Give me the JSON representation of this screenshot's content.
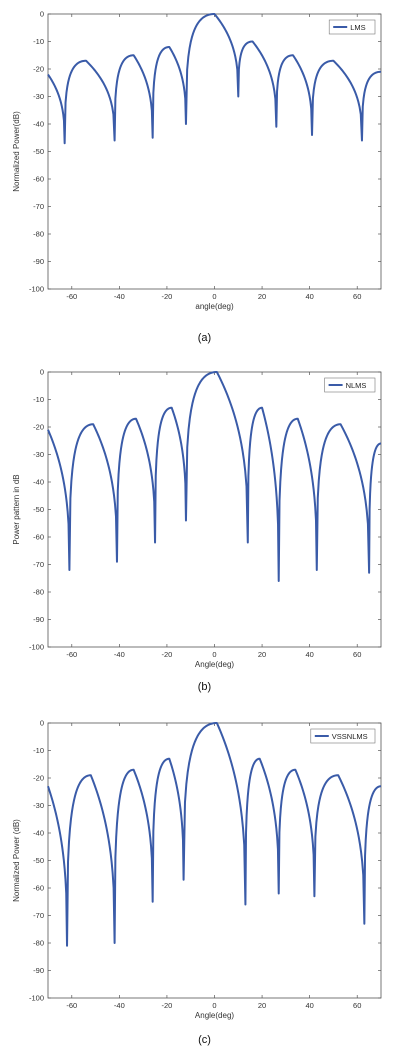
{
  "series_color": "#3a5ba8",
  "chart_data": [
    {
      "type": "line",
      "caption": "(a)",
      "xlabel": "angle(deg)",
      "ylabel": "Normalized Power(dB)",
      "xlim": [
        -70,
        70
      ],
      "ylim": [
        -100,
        0
      ],
      "xticks": [
        -60,
        -40,
        -20,
        0,
        20,
        40,
        60
      ],
      "yticks": [
        0,
        -10,
        -20,
        -30,
        -40,
        -50,
        -60,
        -70,
        -80,
        -90,
        -100
      ],
      "legend_position": "top-right",
      "series": [
        {
          "name": "LMS",
          "x": [
            -70,
            -63,
            -54,
            -42,
            -34,
            -26,
            -19,
            -12,
            0,
            10,
            16,
            26,
            33,
            41,
            50,
            62,
            70
          ],
          "y": [
            -22,
            -47,
            -17,
            -46,
            -15,
            -45,
            -12,
            -40,
            0,
            -30,
            -10,
            -41,
            -15,
            -44,
            -17,
            -46,
            -21
          ]
        }
      ]
    },
    {
      "type": "line",
      "caption": "(b)",
      "xlabel": "Angle(deg)",
      "ylabel": "Power pattern in dB",
      "xlim": [
        -70,
        70
      ],
      "ylim": [
        -100,
        0
      ],
      "xticks": [
        -60,
        -40,
        -20,
        0,
        20,
        40,
        60
      ],
      "yticks": [
        0,
        -10,
        -20,
        -30,
        -40,
        -50,
        -60,
        -70,
        -80,
        -90,
        -100
      ],
      "legend_position": "top-right",
      "series": [
        {
          "name": "NLMS",
          "x": [
            -70,
            -61,
            -51,
            -41,
            -33,
            -25,
            -18,
            -12,
            1,
            14,
            20,
            27,
            35,
            43,
            53,
            65,
            70
          ],
          "y": [
            -21,
            -72,
            -19,
            -69,
            -17,
            -62,
            -13,
            -54,
            0,
            -62,
            -13,
            -76,
            -17,
            -72,
            -19,
            -73,
            -26
          ]
        }
      ]
    },
    {
      "type": "line",
      "caption": "(c)",
      "xlabel": "Angle(deg)",
      "ylabel": "Normalized Power (dB)",
      "xlim": [
        -70,
        70
      ],
      "ylim": [
        -100,
        0
      ],
      "xticks": [
        -60,
        -40,
        -20,
        0,
        20,
        40,
        60
      ],
      "yticks": [
        0,
        -10,
        -20,
        -30,
        -40,
        -50,
        -60,
        -70,
        -80,
        -90,
        -100
      ],
      "legend_position": "top-right",
      "series": [
        {
          "name": "VSSNLMS",
          "x": [
            -70,
            -62,
            -52,
            -42,
            -34,
            -26,
            -19,
            -13,
            1,
            13,
            19,
            27,
            34,
            42,
            52,
            63,
            70
          ],
          "y": [
            -23,
            -81,
            -19,
            -80,
            -17,
            -65,
            -13,
            -57,
            0,
            -66,
            -13,
            -62,
            -17,
            -63,
            -19,
            -73,
            -23
          ]
        }
      ]
    }
  ]
}
